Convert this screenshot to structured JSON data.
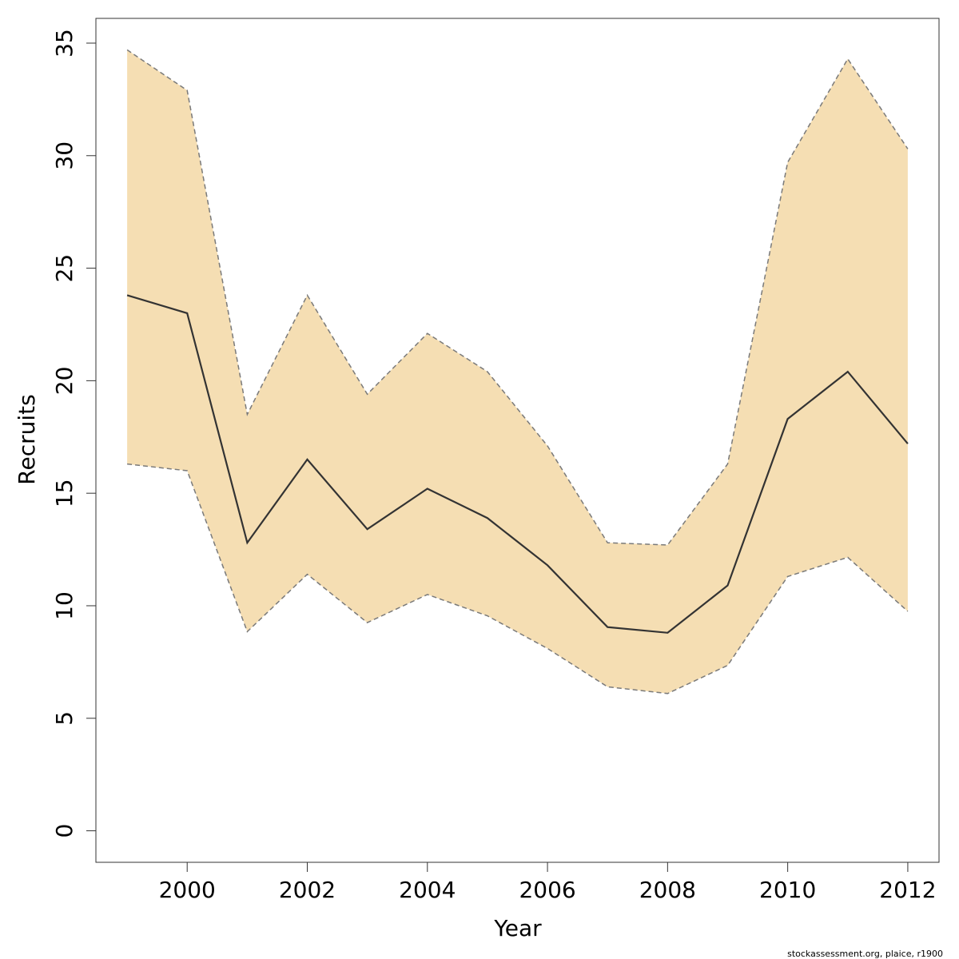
{
  "chart_data": {
    "type": "line",
    "x": [
      1999,
      2000,
      2001,
      2002,
      2003,
      2004,
      2005,
      2006,
      2007,
      2008,
      2009,
      2010,
      2011,
      2012
    ],
    "series": [
      {
        "values": [
          23.8,
          23.0,
          12.8,
          16.5,
          13.4,
          15.2,
          13.9,
          11.8,
          9.05,
          8.8,
          10.9,
          18.3,
          20.4,
          17.2
        ]
      }
    ],
    "upper": [
      34.7,
      32.9,
      18.5,
      23.8,
      19.4,
      22.1,
      20.4,
      17.1,
      12.8,
      12.7,
      16.3,
      29.7,
      34.3,
      30.3
    ],
    "lower": [
      16.3,
      16.0,
      8.85,
      11.4,
      9.25,
      10.5,
      9.55,
      8.1,
      6.4,
      6.1,
      7.35,
      11.3,
      12.15,
      9.75
    ],
    "xlabel": "Year",
    "ylabel": "Recruits",
    "xlim": [
      1998.48,
      2012.52
    ],
    "ylim": [
      -1.4,
      36.1
    ],
    "x_ticks": [
      "2000",
      "2002",
      "2004",
      "2006",
      "2008",
      "2010",
      "2012"
    ],
    "y_ticks": [
      "0",
      "5",
      "10",
      "15",
      "20",
      "25",
      "30",
      "35"
    ],
    "grid": false,
    "legend": "none",
    "colors": {
      "band_fill": "#f5deb3",
      "band_border": "#7a7a7a",
      "line": "#333333",
      "axis": "#333333"
    }
  },
  "credit": "stockassessment.org, plaice, r1900"
}
